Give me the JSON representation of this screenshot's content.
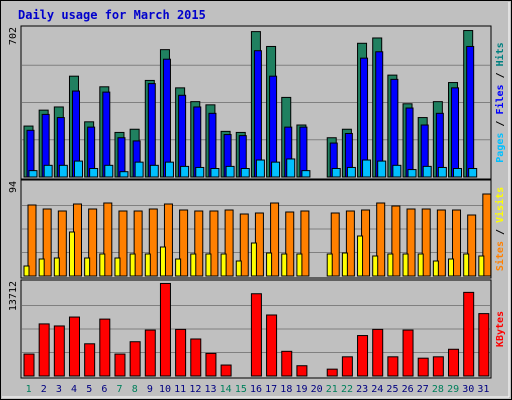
{
  "chart_data": {
    "type": "bar",
    "title": "Daily usage for March 2015",
    "categories": [
      "1",
      "2",
      "3",
      "4",
      "5",
      "6",
      "7",
      "8",
      "9",
      "10",
      "11",
      "12",
      "13",
      "14",
      "15",
      "16",
      "17",
      "18",
      "19",
      "20",
      "21",
      "22",
      "23",
      "24",
      "25",
      "26",
      "27",
      "28",
      "29",
      "30",
      "31"
    ],
    "weekend_days": [
      "1",
      "7",
      "8",
      "14",
      "15",
      "21",
      "22",
      "28",
      "29"
    ],
    "panels": [
      {
        "id": "pages-files-hits",
        "max_label": "702",
        "ylim": [
          0,
          702
        ],
        "side_label": [
          {
            "text": "Pages",
            "color": "#00C0FF"
          },
          {
            "text": " / ",
            "color": "#000000"
          },
          {
            "text": "Files",
            "color": "#0000FF"
          },
          {
            "text": " / ",
            "color": "#000000"
          },
          {
            "text": "Hits",
            "color": "#008080"
          }
        ],
        "series": [
          {
            "name": "Hits",
            "color": "#208060",
            "values": [
              240,
              315,
              330,
              475,
              260,
              425,
              210,
              225,
              455,
              600,
              420,
              355,
              340,
              215,
              210,
              685,
              615,
              375,
              245,
              0,
              185,
              225,
              630,
              655,
              480,
              345,
              280,
              355,
              445,
              690,
              0
            ]
          },
          {
            "name": "Files",
            "color": "#0000FF",
            "values": [
              220,
              295,
              280,
              405,
              235,
              400,
              185,
              170,
              440,
              555,
              385,
              330,
              300,
              200,
              195,
              595,
              475,
              235,
              235,
              0,
              160,
              205,
              560,
              590,
              460,
              325,
              245,
              300,
              420,
              615,
              0
            ]
          },
          {
            "name": "Pages",
            "color": "#00C0FF",
            "values": [
              30,
              55,
              55,
              75,
              40,
              55,
              25,
              70,
              55,
              70,
              50,
              45,
              40,
              50,
              40,
              80,
              70,
              85,
              30,
              0,
              40,
              45,
              80,
              75,
              55,
              35,
              50,
              45,
              40,
              40,
              0
            ]
          }
        ]
      },
      {
        "id": "visits-sites",
        "max_label": "94",
        "ylim": [
          0,
          94
        ],
        "side_label": [
          {
            "text": "Sites",
            "color": "#FF8000"
          },
          {
            "text": " / ",
            "color": "#000000"
          },
          {
            "text": "Visits",
            "color": "#FFFF00"
          }
        ],
        "series": [
          {
            "name": "Visits",
            "color": "#FF8000",
            "values": [
              71,
              67,
              65,
              72,
              67,
              73,
              65,
              65,
              67,
              72,
              66,
              65,
              65,
              66,
              62,
              63,
              73,
              64,
              65,
              0,
              63,
              65,
              66,
              73,
              70,
              67,
              67,
              66,
              66,
              61,
              82
            ]
          },
          {
            "name": "Sites",
            "color": "#FFFF00",
            "values": [
              10,
              17,
              18,
              44,
              18,
              22,
              18,
              22,
              22,
              29,
              17,
              22,
              22,
              22,
              15,
              33,
              23,
              22,
              22,
              0,
              22,
              23,
              40,
              20,
              22,
              22,
              22,
              15,
              17,
              22,
              20
            ]
          }
        ]
      },
      {
        "id": "kbytes",
        "max_label": "13712",
        "ylim": [
          0,
          13712
        ],
        "side_label": [
          {
            "text": "KBytes",
            "color": "#FF0000"
          }
        ],
        "series": [
          {
            "name": "KBytes",
            "color": "#FF0000",
            "values": [
              3200,
              7600,
              7300,
              8600,
              4700,
              8300,
              3200,
              5000,
              6700,
              13500,
              6800,
              5400,
              3300,
              1600,
              0,
              12000,
              8900,
              3600,
              1500,
              0,
              1000,
              2800,
              5900,
              6800,
              2800,
              6700,
              2600,
              2800,
              3900,
              12200,
              9100
            ]
          }
        ]
      }
    ]
  }
}
